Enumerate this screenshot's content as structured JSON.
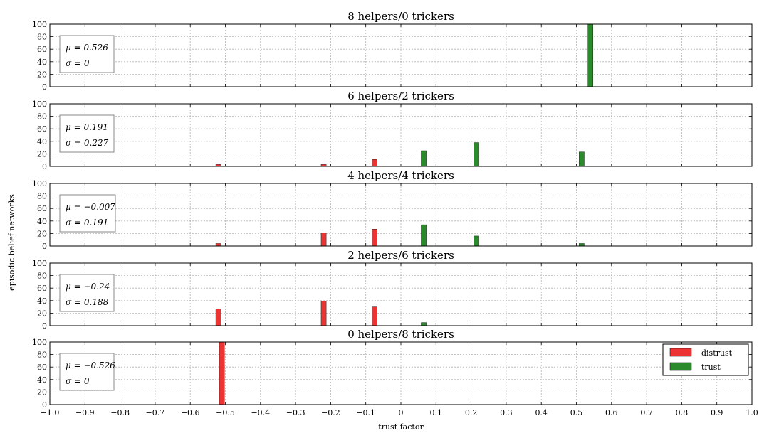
{
  "chart_data": [
    {
      "type": "bar",
      "title": "8 helpers/0 trickers",
      "mu_text": "μ = 0.526",
      "sigma_text": "σ = 0",
      "ylim": [
        0,
        100
      ],
      "bars": [
        {
          "x": 0.54,
          "value": 100,
          "series": "trust"
        }
      ]
    },
    {
      "type": "bar",
      "title": "6 helpers/2 trickers",
      "mu_text": "μ = 0.191",
      "sigma_text": "σ = 0.227",
      "ylim": [
        0,
        100
      ],
      "bars": [
        {
          "x": -0.52,
          "value": 3,
          "series": "distrust"
        },
        {
          "x": -0.22,
          "value": 3,
          "series": "distrust"
        },
        {
          "x": -0.075,
          "value": 11,
          "series": "distrust"
        },
        {
          "x": 0.065,
          "value": 25,
          "series": "trust"
        },
        {
          "x": 0.215,
          "value": 38,
          "series": "trust"
        },
        {
          "x": 0.515,
          "value": 23,
          "series": "trust"
        }
      ]
    },
    {
      "type": "bar",
      "title": "4 helpers/4 trickers",
      "mu_text": "μ = −0.007",
      "sigma_text": "σ = 0.191",
      "ylim": [
        0,
        100
      ],
      "bars": [
        {
          "x": -0.52,
          "value": 4,
          "series": "distrust"
        },
        {
          "x": -0.22,
          "value": 21,
          "series": "distrust"
        },
        {
          "x": -0.075,
          "value": 27,
          "series": "distrust"
        },
        {
          "x": 0.065,
          "value": 34,
          "series": "trust"
        },
        {
          "x": 0.215,
          "value": 16,
          "series": "trust"
        },
        {
          "x": 0.515,
          "value": 4,
          "series": "trust"
        }
      ]
    },
    {
      "type": "bar",
      "title": "2 helpers/6 trickers",
      "mu_text": "μ = −0.24",
      "sigma_text": "σ = 0.188",
      "ylim": [
        0,
        100
      ],
      "bars": [
        {
          "x": -0.52,
          "value": 27,
          "series": "distrust"
        },
        {
          "x": -0.22,
          "value": 39,
          "series": "distrust"
        },
        {
          "x": -0.075,
          "value": 30,
          "series": "distrust"
        },
        {
          "x": 0.065,
          "value": 5,
          "series": "trust"
        }
      ]
    },
    {
      "type": "bar",
      "title": "0 helpers/8 trickers",
      "mu_text": "μ = −0.526",
      "sigma_text": "σ = 0",
      "ylim": [
        0,
        100
      ],
      "bars": [
        {
          "x": -0.51,
          "value": 100,
          "series": "distrust"
        }
      ]
    }
  ],
  "shared": {
    "xlim": [
      -1.0,
      1.0
    ],
    "x_ticks": [
      -1.0,
      -0.9,
      -0.8,
      -0.7,
      -0.6,
      -0.5,
      -0.4,
      -0.3,
      -0.2,
      -0.1,
      0,
      0.1,
      0.2,
      0.3,
      0.4,
      0.5,
      0.6,
      0.7,
      0.8,
      0.9,
      1.0
    ],
    "x_tick_labels": [
      "−1.0",
      "−0.9",
      "−0.8",
      "−0.7",
      "−0.6",
      "−0.5",
      "−0.4",
      "−0.3",
      "−0.2",
      "−0.1",
      "0",
      "0.1",
      "0.2",
      "0.3",
      "0.4",
      "0.5",
      "0.6",
      "0.7",
      "0.8",
      "0.9",
      "1.0"
    ],
    "y_ticks": [
      0,
      20,
      40,
      60,
      80,
      100
    ],
    "xlabel": "trust factor",
    "ylabel": "episodic belief networks",
    "grid": true,
    "bar_width": 0.025
  },
  "legend": {
    "placement": "right",
    "items": [
      {
        "key": "distrust",
        "label": "distrust",
        "color": "#ee3333"
      },
      {
        "key": "trust",
        "label": "trust",
        "color": "#2b8a2b"
      }
    ]
  },
  "colors": {
    "distrust": "#ee3333",
    "trust": "#2b8a2b",
    "grid": "#b5b5b5",
    "axes": "#000000"
  }
}
